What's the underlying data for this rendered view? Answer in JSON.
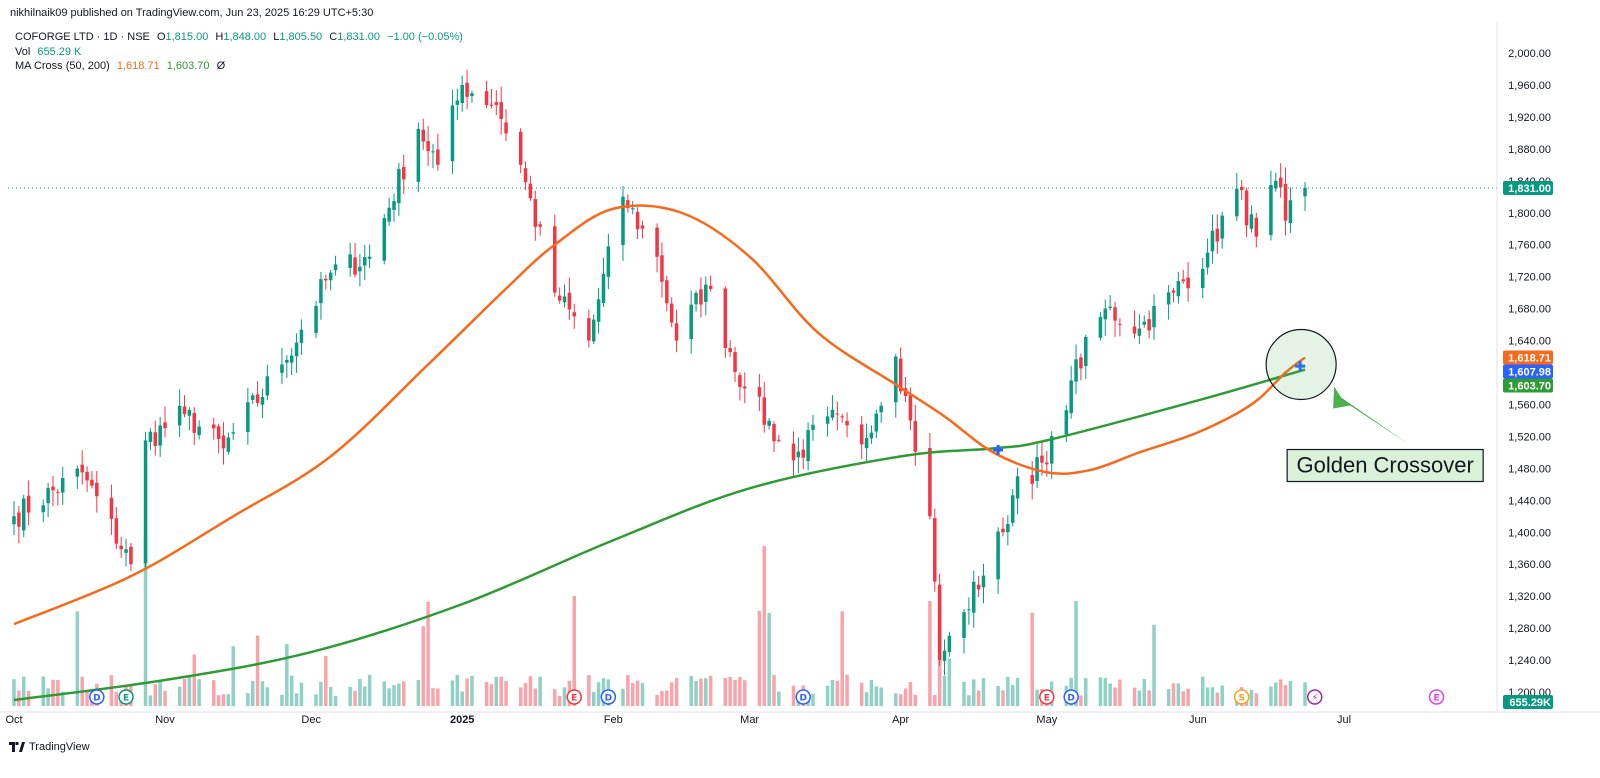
{
  "publisher_line": "nikhilnaik09 published on TradingView.com, Jun 23, 2025 16:29 UTC+5:30",
  "legend": {
    "symbol": "COFORGE LTD · 1D · NSE",
    "open_label": "O",
    "open": "1,815.00",
    "high_label": "H",
    "high": "1,848.00",
    "low_label": "L",
    "low": "1,805.50",
    "close_label": "C",
    "close": "1,831.00",
    "change": "−1.00 (−0.05%)",
    "vol_label": "Vol",
    "vol": "655.29 K",
    "ma_label": "MA Cross (50, 200)",
    "ma50": "1,618.71",
    "ma200": "1,603.70",
    "ma_extra": "Ø"
  },
  "footer_brand": "TradingView",
  "colors": {
    "up": "#089981",
    "down": "#f23645",
    "ma50": "#f7691b",
    "ma200": "#2e9b34",
    "cross": "#2962ff",
    "annotation_bg": "#d9f0d9",
    "annotation_arrow": "#4caf50"
  },
  "chart_data": {
    "type": "candlestick",
    "title": "COFORGE LTD · 1D · NSE",
    "ylim": [
      1190,
      2020
    ],
    "y_ticks": [
      1200,
      1240,
      1280,
      1320,
      1360,
      1400,
      1440,
      1480,
      1520,
      1560,
      1600,
      1640,
      1680,
      1720,
      1760,
      1800,
      1840,
      1880,
      1920,
      1960,
      2000
    ],
    "y_tick_labels": [
      "1,200.00",
      "1,240.00",
      "1,280.00",
      "1,320.00",
      "1,360.00",
      "1,400.00",
      "1,440.00",
      "1,480.00",
      "1,520.00",
      "1,560.00",
      "1,600.00",
      "1,640.00",
      "1,680.00",
      "1,720.00",
      "1,760.00",
      "1,800.00",
      "1,840.00",
      "1,880.00",
      "1,920.00",
      "1,960.00",
      "2,000.00"
    ],
    "x_labels": [
      {
        "date": "2024-10-01",
        "label": "Oct"
      },
      {
        "date": "2024-11-01",
        "label": "Nov"
      },
      {
        "date": "2024-12-01",
        "label": "Dec"
      },
      {
        "date": "2025-01-01",
        "label": "2025"
      },
      {
        "date": "2025-02-01",
        "label": "Feb"
      },
      {
        "date": "2025-03-01",
        "label": "Mar"
      },
      {
        "date": "2025-04-01",
        "label": "Apr"
      },
      {
        "date": "2025-05-01",
        "label": "May"
      },
      {
        "date": "2025-06-01",
        "label": "Jun"
      },
      {
        "date": "2025-07-01",
        "label": "Jul"
      }
    ],
    "price_badges": [
      {
        "label": "1,831.00",
        "value": 1831.0,
        "color": "#089981"
      },
      {
        "label": "1,618.71",
        "value": 1618.71,
        "color": "#f7691b"
      },
      {
        "label": "1,607.98",
        "value": 1607.98,
        "color": "#2962ff"
      },
      {
        "label": "1,603.70",
        "value": 1603.7,
        "color": "#2e9b34"
      }
    ],
    "volume_badge": "655.29K",
    "last_price": 1831.0,
    "key_points": [
      {
        "date": "2024-10-01",
        "close": 1420
      },
      {
        "date": "2024-10-15",
        "close": 1475
      },
      {
        "date": "2024-10-25",
        "close": 1360
      },
      {
        "date": "2024-10-28",
        "close": 1515
      },
      {
        "date": "2024-11-05",
        "close": 1548
      },
      {
        "date": "2024-11-13",
        "close": 1505
      },
      {
        "date": "2024-11-25",
        "close": 1610
      },
      {
        "date": "2024-12-05",
        "close": 1725
      },
      {
        "date": "2024-12-13",
        "close": 1745
      },
      {
        "date": "2024-12-23",
        "close": 1905
      },
      {
        "date": "2024-12-27",
        "close": 1860
      },
      {
        "date": "2025-01-01",
        "close": 1960
      },
      {
        "date": "2025-01-08",
        "close": 1935
      },
      {
        "date": "2025-01-13",
        "close": 1860
      },
      {
        "date": "2025-01-20",
        "close": 1700
      },
      {
        "date": "2025-01-27",
        "close": 1640
      },
      {
        "date": "2025-02-03",
        "close": 1820
      },
      {
        "date": "2025-02-10",
        "close": 1745
      },
      {
        "date": "2025-02-14",
        "close": 1640
      },
      {
        "date": "2025-02-20",
        "close": 1710
      },
      {
        "date": "2025-02-28",
        "close": 1580
      },
      {
        "date": "2025-03-10",
        "close": 1490
      },
      {
        "date": "2025-03-17",
        "close": 1545
      },
      {
        "date": "2025-03-24",
        "close": 1510
      },
      {
        "date": "2025-03-31",
        "close": 1620
      },
      {
        "date": "2025-04-03",
        "close": 1540
      },
      {
        "date": "2025-04-07",
        "close": 1420
      },
      {
        "date": "2025-04-09",
        "close": 1240
      },
      {
        "date": "2025-04-14",
        "close": 1300
      },
      {
        "date": "2025-04-22",
        "close": 1400
      },
      {
        "date": "2025-04-25",
        "close": 1470
      },
      {
        "date": "2025-05-01",
        "close": 1485
      },
      {
        "date": "2025-05-06",
        "close": 1590
      },
      {
        "date": "2025-05-13",
        "close": 1680
      },
      {
        "date": "2025-05-20",
        "close": 1655
      },
      {
        "date": "2025-05-27",
        "close": 1700
      },
      {
        "date": "2025-06-03",
        "close": 1750
      },
      {
        "date": "2025-06-09",
        "close": 1830
      },
      {
        "date": "2025-06-13",
        "close": 1770
      },
      {
        "date": "2025-06-17",
        "close": 1840
      },
      {
        "date": "2025-06-19",
        "close": 1790
      },
      {
        "date": "2025-06-23",
        "close": 1831
      }
    ],
    "ma50_points": [
      {
        "date": "2024-10-01",
        "value": 1285
      },
      {
        "date": "2024-10-25",
        "value": 1345
      },
      {
        "date": "2024-11-15",
        "value": 1420
      },
      {
        "date": "2024-12-05",
        "value": 1495
      },
      {
        "date": "2024-12-25",
        "value": 1610
      },
      {
        "date": "2025-01-10",
        "value": 1705
      },
      {
        "date": "2025-01-20",
        "value": 1760
      },
      {
        "date": "2025-02-01",
        "value": 1805
      },
      {
        "date": "2025-02-15",
        "value": 1800
      },
      {
        "date": "2025-03-01",
        "value": 1745
      },
      {
        "date": "2025-03-15",
        "value": 1650
      },
      {
        "date": "2025-03-31",
        "value": 1585
      },
      {
        "date": "2025-04-10",
        "value": 1545
      },
      {
        "date": "2025-04-20",
        "value": 1500
      },
      {
        "date": "2025-05-01",
        "value": 1475
      },
      {
        "date": "2025-05-10",
        "value": 1478
      },
      {
        "date": "2025-05-20",
        "value": 1500
      },
      {
        "date": "2025-06-01",
        "value": 1525
      },
      {
        "date": "2025-06-12",
        "value": 1560
      },
      {
        "date": "2025-06-19",
        "value": 1600
      },
      {
        "date": "2025-06-23",
        "value": 1618.71
      }
    ],
    "ma200_points": [
      {
        "date": "2024-10-01",
        "value": 1190
      },
      {
        "date": "2024-11-01",
        "value": 1215
      },
      {
        "date": "2024-12-01",
        "value": 1250
      },
      {
        "date": "2025-01-01",
        "value": 1310
      },
      {
        "date": "2025-02-01",
        "value": 1390
      },
      {
        "date": "2025-03-01",
        "value": 1455
      },
      {
        "date": "2025-04-01",
        "value": 1495
      },
      {
        "date": "2025-04-20",
        "value": 1505
      },
      {
        "date": "2025-05-01",
        "value": 1515
      },
      {
        "date": "2025-06-01",
        "value": 1565
      },
      {
        "date": "2025-06-23",
        "value": 1603.7
      }
    ],
    "cross_markers": [
      {
        "date": "2025-04-21",
        "value": 1503
      },
      {
        "date": "2025-06-22",
        "value": 1607.98
      }
    ],
    "event_markers": [
      {
        "date": "2024-10-18",
        "letter": "D",
        "color": "#2962ff"
      },
      {
        "date": "2024-10-24",
        "letter": "E",
        "color": "#089981"
      },
      {
        "date": "2025-01-24",
        "letter": "E",
        "color": "#f23645"
      },
      {
        "date": "2025-01-31",
        "letter": "D",
        "color": "#2962ff"
      },
      {
        "date": "2025-03-12",
        "letter": "D",
        "color": "#2962ff"
      },
      {
        "date": "2025-05-01",
        "letter": "E",
        "color": "#f23645"
      },
      {
        "date": "2025-05-06",
        "letter": "D",
        "color": "#2962ff"
      },
      {
        "date": "2025-06-10",
        "letter": "S",
        "color": "#f7a21b"
      },
      {
        "date": "2025-06-25",
        "letter": "⚡",
        "color": "#9c27b0"
      },
      {
        "date": "2025-07-20",
        "letter": "E",
        "color": "#e040fb"
      }
    ],
    "annotations": [
      {
        "text": "Golden Crossover",
        "points_to_date": "2025-06-22",
        "points_to_value": 1610
      }
    ]
  }
}
